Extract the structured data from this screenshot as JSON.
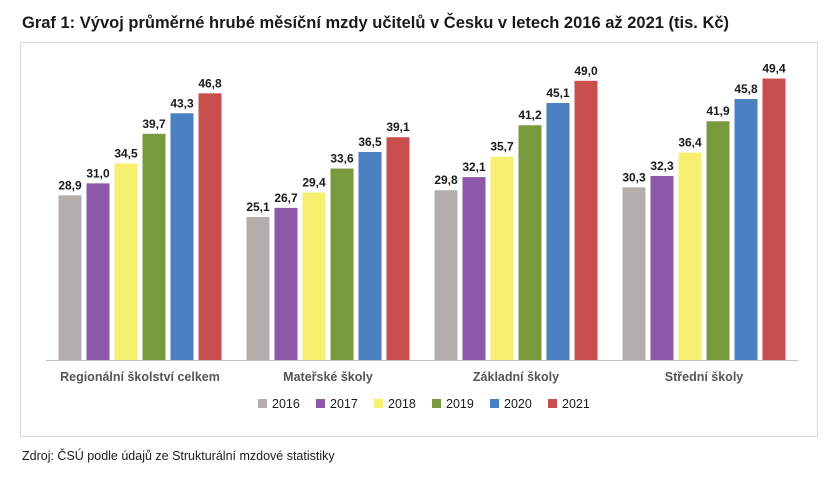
{
  "title": "Graf 1: Vývoj průměrné hrubé měsíční mzdy učitelů v Česku v letech 2016 až 2021 (tis. Kč)",
  "source": "Zdroj: ČSÚ podle údajů ze Strukturální mzdové statistiky",
  "chart_data": {
    "type": "bar",
    "title": "Graf 1: Vývoj průměrné hrubé měsíční mzdy učitelů v Česku v letech 2016 až 2021 (tis. Kč)",
    "xlabel": "",
    "ylabel": "",
    "ylim": [
      0,
      53
    ],
    "grid": false,
    "legend_position": "bottom",
    "categories": [
      "Regionální školství celkem",
      "Mateřské školy",
      "Základní školy",
      "Střední školy"
    ],
    "series": [
      {
        "name": "2016",
        "color": "#b3aeac",
        "values": [
          28.9,
          25.1,
          29.8,
          30.3
        ],
        "labels": [
          "28,9",
          "25,1",
          "29,8",
          "30,3"
        ]
      },
      {
        "name": "2017",
        "color": "#8e58a8",
        "values": [
          31.0,
          26.7,
          32.1,
          32.3
        ],
        "labels": [
          "31,0",
          "26,7",
          "32,1",
          "32,3"
        ]
      },
      {
        "name": "2018",
        "color": "#f7ef72",
        "values": [
          34.5,
          29.4,
          35.7,
          36.4
        ],
        "labels": [
          "34,5",
          "29,4",
          "35,7",
          "36,4"
        ]
      },
      {
        "name": "2019",
        "color": "#789a3c",
        "values": [
          39.7,
          33.6,
          41.2,
          41.9
        ],
        "labels": [
          "39,7",
          "33,6",
          "41,2",
          "41,9"
        ]
      },
      {
        "name": "2020",
        "color": "#4a80c1",
        "values": [
          43.3,
          36.5,
          45.1,
          45.8
        ],
        "labels": [
          "43,3",
          "36,5",
          "45,1",
          "45,8"
        ]
      },
      {
        "name": "2021",
        "color": "#c94f4f",
        "values": [
          46.8,
          39.1,
          49.0,
          49.4
        ],
        "labels": [
          "46,8",
          "39,1",
          "49,0",
          "49,4"
        ]
      }
    ]
  }
}
